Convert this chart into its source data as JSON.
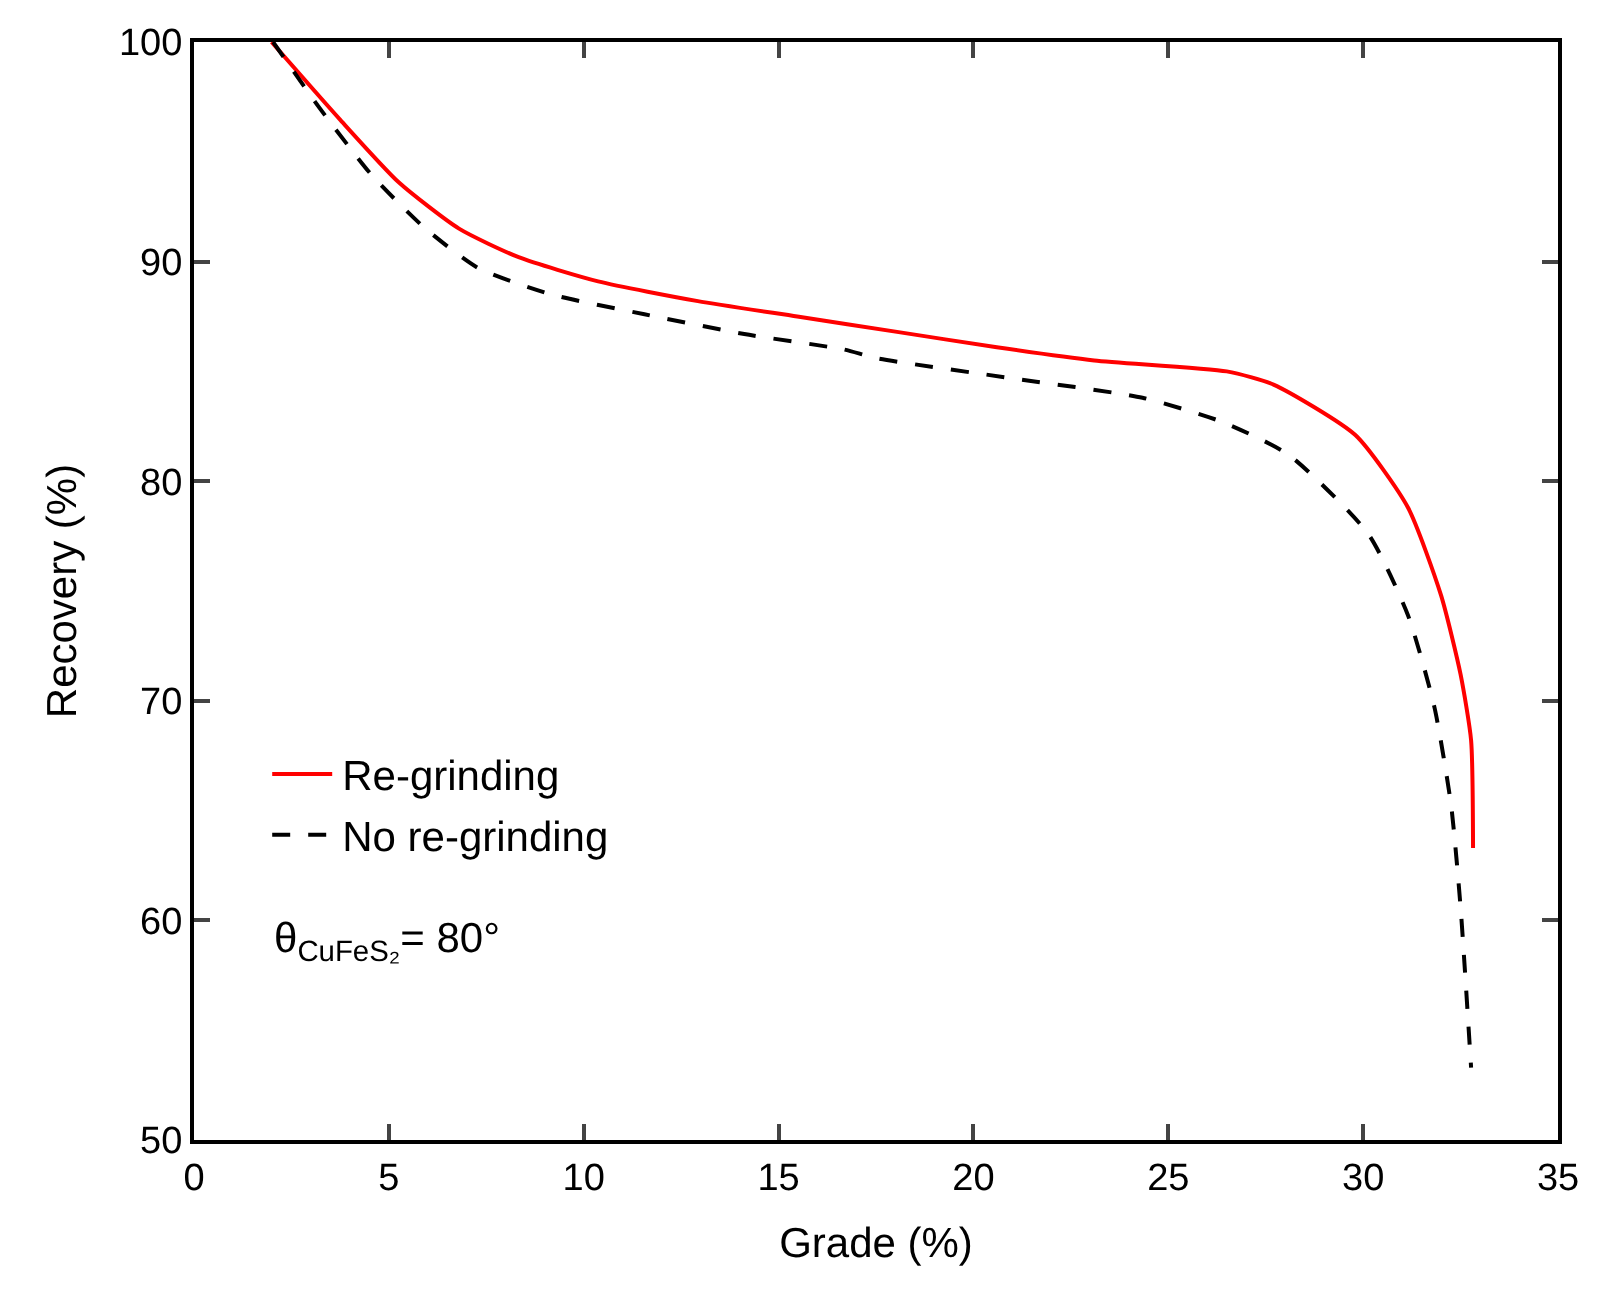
{
  "chart_data": {
    "type": "line",
    "xlabel": "Grade (%)",
    "ylabel": "Recovery (%)",
    "xlim": [
      0,
      35
    ],
    "xticks": [
      0,
      5,
      10,
      15,
      20,
      25,
      30,
      35
    ],
    "ylim": [
      50,
      100
    ],
    "yticks": [
      50,
      60,
      70,
      80,
      90,
      100
    ],
    "legend": "bottom left",
    "marker": "none",
    "annotations": [
      "θ$_{CuFeS₂}$= 80°"
    ],
    "series": [
      {
        "name": "Re-grinding",
        "color": "#ff0000",
        "line_style": "solid",
        "x": [
          1.99,
          3.73,
          5.26,
          6.8,
          8.33,
          10.37,
          12.93,
          15.48,
          18.04,
          20.6,
          23.1,
          26.5,
          27.7,
          29.8,
          31.15,
          32.0,
          32.5,
          32.77,
          32.82
        ],
        "values": [
          100,
          96.5,
          93.6,
          91.5,
          90.2,
          89.1,
          88.2,
          87.5,
          86.8,
          86.1,
          85.5,
          85.0,
          84.4,
          82.1,
          78.8,
          74.8,
          71.2,
          68.2,
          63.3
        ]
      },
      {
        "name": "No re-grinding",
        "color": "#000000",
        "line_style": "dashed",
        "x": [
          2.03,
          3.22,
          4.58,
          5.94,
          7.3,
          9.18,
          11.56,
          14.12,
          16.67,
          17.52,
          20.93,
          24.34,
          26.38,
          28.09,
          30.13,
          31.15,
          31.83,
          32.26,
          32.5,
          32.77
        ],
        "values": [
          100,
          97.0,
          93.9,
          91.5,
          89.7,
          88.5,
          87.6,
          86.7,
          86.0,
          85.6,
          84.7,
          83.8,
          82.7,
          81.2,
          77.6,
          73.9,
          69.7,
          65.2,
          60.6,
          53.3
        ]
      }
    ]
  }
}
